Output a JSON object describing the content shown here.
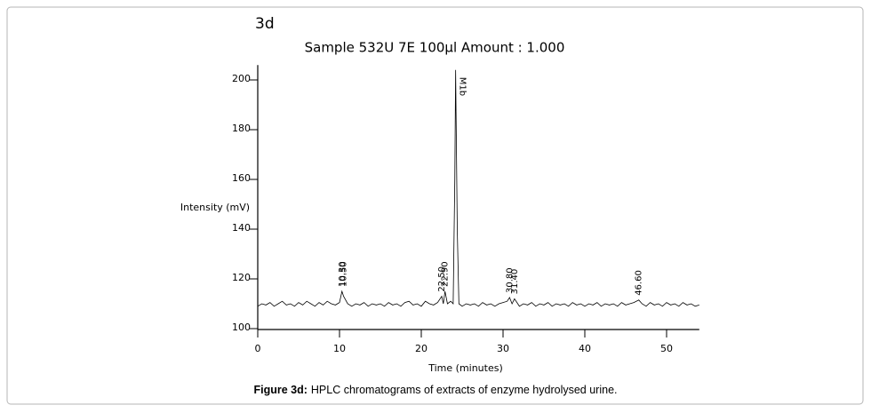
{
  "chart_data": {
    "type": "line",
    "panel_label": "3d",
    "title": "Sample 532U 7E 100µl  Amount : 1.000",
    "x_label": "Time (minutes)",
    "y_label": "Intensity (mV)",
    "color": "#000000",
    "x": [
      0,
      0.5,
      1,
      1.5,
      2,
      2.5,
      3,
      3.5,
      4,
      4.5,
      5,
      5.5,
      6,
      6.5,
      7,
      7.5,
      8,
      8.5,
      9,
      9.5,
      10,
      10.3,
      10.5,
      11,
      11.5,
      12,
      12.5,
      13,
      13.5,
      14,
      14.5,
      15,
      15.5,
      16,
      16.5,
      17,
      17.5,
      18,
      18.5,
      19,
      19.5,
      20,
      20.5,
      21,
      21.5,
      22,
      22.5,
      22.7,
      22.9,
      23.2,
      23.6,
      23.9,
      24.1,
      24.2,
      24.4,
      24.6,
      25,
      25.5,
      26,
      26.5,
      27,
      27.5,
      28,
      28.5,
      29,
      29.5,
      30,
      30.5,
      30.8,
      31.1,
      31.4,
      31.8,
      32,
      32.5,
      33,
      33.5,
      34,
      34.5,
      35,
      35.5,
      36,
      36.5,
      37,
      37.5,
      38,
      38.5,
      39,
      39.5,
      40,
      40.5,
      41,
      41.5,
      42,
      42.5,
      43,
      43.5,
      44,
      44.5,
      45,
      45.5,
      46,
      46.6,
      47,
      47.5,
      48,
      48.5,
      49,
      49.5,
      50,
      50.5,
      51,
      51.5,
      52,
      52.5,
      53,
      53.5,
      54
    ],
    "values": [
      109,
      110,
      109.5,
      110.5,
      109,
      110,
      111,
      109.5,
      110,
      109,
      110.5,
      109.5,
      111,
      110,
      109,
      110.5,
      109.5,
      111,
      110,
      109.5,
      110.5,
      115,
      113,
      110,
      109,
      110,
      109.5,
      110.5,
      109,
      110,
      109.5,
      110,
      109,
      110.5,
      109.5,
      110,
      109,
      110.5,
      111,
      109.5,
      110,
      109,
      111,
      110,
      109.5,
      110.5,
      113,
      110,
      115,
      110,
      111,
      110,
      160,
      204,
      140,
      110,
      109,
      110,
      109.5,
      110,
      109,
      110.5,
      109.5,
      110,
      109,
      110,
      110.5,
      111,
      112.5,
      110,
      112,
      110,
      109,
      110,
      109.5,
      110.5,
      109,
      110,
      109.5,
      110.5,
      109,
      110,
      109.5,
      110,
      109,
      110.5,
      109.5,
      110,
      109,
      110,
      109.5,
      110.5,
      109,
      110,
      109.5,
      110,
      109,
      110.5,
      109.5,
      110,
      110.5,
      111.5,
      110,
      109,
      110.5,
      109.5,
      110,
      109,
      110.5,
      109.5,
      110,
      109,
      110.5,
      109.5,
      110,
      109,
      109.5
    ],
    "annotations": [
      {
        "label": "10.30",
        "x": 10.3
      },
      {
        "label": "10.50",
        "x": 10.5
      },
      {
        "label": "22.50",
        "x": 22.5
      },
      {
        "label": "22.90",
        "x": 22.9
      },
      {
        "label": "M1b",
        "x": 24.2
      },
      {
        "label": "30.80",
        "x": 30.8
      },
      {
        "label": "31.40",
        "x": 31.4
      },
      {
        "label": "46.60",
        "x": 46.6
      }
    ],
    "xlim": [
      0,
      54
    ],
    "xticks": [
      0,
      10,
      20,
      30,
      40,
      50
    ],
    "ylim": [
      100,
      206
    ],
    "yticks": [
      100,
      120,
      140,
      160,
      180,
      200
    ]
  },
  "caption": {
    "label": "Figure 3d:",
    "text": "HPLC chromatograms of extracts of enzyme hydrolysed urine."
  }
}
